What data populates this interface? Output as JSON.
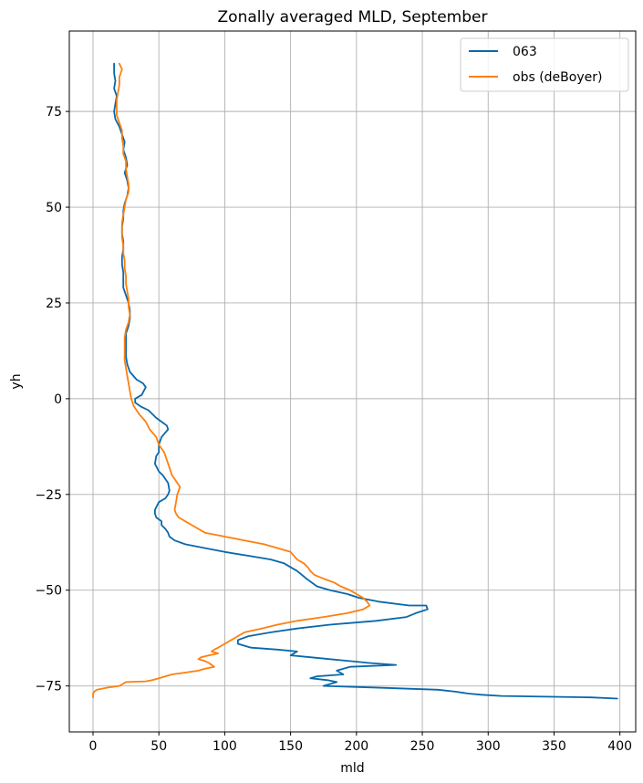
{
  "chart_data": {
    "type": "line",
    "title": "Zonally averaged MLD, September",
    "xlabel": "mld",
    "ylabel": "yh",
    "xlim": [
      -18,
      412
    ],
    "ylim": [
      -87,
      96
    ],
    "xticks": [
      0,
      50,
      100,
      150,
      200,
      250,
      300,
      350,
      400
    ],
    "yticks": [
      -75,
      -50,
      -25,
      0,
      25,
      50,
      75
    ],
    "grid": true,
    "legend_position": "top-right",
    "series": [
      {
        "name": "063",
        "color": "#0868ac",
        "points": [
          [
            16,
            87.5
          ],
          [
            16,
            85
          ],
          [
            17,
            83
          ],
          [
            16,
            81
          ],
          [
            18,
            79
          ],
          [
            17,
            77
          ],
          [
            16,
            75
          ],
          [
            17,
            73
          ],
          [
            20,
            71
          ],
          [
            22,
            69
          ],
          [
            24,
            67
          ],
          [
            23,
            65
          ],
          [
            25,
            63
          ],
          [
            26,
            61
          ],
          [
            24,
            59
          ],
          [
            26,
            57
          ],
          [
            27,
            55
          ],
          [
            26,
            53
          ],
          [
            24,
            51
          ],
          [
            23,
            49
          ],
          [
            23,
            47
          ],
          [
            22,
            45
          ],
          [
            22,
            43
          ],
          [
            23,
            41
          ],
          [
            23,
            39
          ],
          [
            22,
            37
          ],
          [
            22,
            35
          ],
          [
            23,
            33
          ],
          [
            23,
            31
          ],
          [
            23,
            29
          ],
          [
            25,
            27
          ],
          [
            27,
            25
          ],
          [
            28,
            23
          ],
          [
            28,
            21
          ],
          [
            27,
            19
          ],
          [
            25,
            17
          ],
          [
            25,
            15
          ],
          [
            25,
            13
          ],
          [
            25,
            11
          ],
          [
            26,
            9
          ],
          [
            28,
            7
          ],
          [
            33,
            5
          ],
          [
            38,
            4
          ],
          [
            40,
            3
          ],
          [
            37,
            1
          ],
          [
            32,
            0
          ],
          [
            32,
            -1
          ],
          [
            36,
            -2
          ],
          [
            42,
            -3
          ],
          [
            48,
            -5
          ],
          [
            52,
            -6
          ],
          [
            56,
            -7
          ],
          [
            57,
            -8
          ],
          [
            52,
            -10
          ],
          [
            50,
            -12
          ],
          [
            50,
            -14
          ],
          [
            48,
            -15
          ],
          [
            47,
            -17
          ],
          [
            50,
            -19
          ],
          [
            53,
            -20
          ],
          [
            57,
            -22
          ],
          [
            58,
            -24
          ],
          [
            57,
            -25
          ],
          [
            55,
            -26
          ],
          [
            50,
            -27
          ],
          [
            47,
            -29
          ],
          [
            47,
            -30
          ],
          [
            48,
            -31
          ],
          [
            52,
            -32
          ],
          [
            52,
            -33
          ],
          [
            55,
            -34
          ],
          [
            57,
            -35
          ],
          [
            58,
            -36
          ],
          [
            62,
            -37
          ],
          [
            70,
            -38
          ],
          [
            85,
            -39
          ],
          [
            100,
            -40
          ],
          [
            118,
            -41
          ],
          [
            135,
            -42
          ],
          [
            145,
            -43
          ],
          [
            155,
            -45
          ],
          [
            162,
            -47
          ],
          [
            170,
            -49
          ],
          [
            180,
            -50
          ],
          [
            193,
            -51
          ],
          [
            202,
            -52
          ],
          [
            217,
            -53
          ],
          [
            240,
            -54
          ],
          [
            253,
            -54
          ],
          [
            254,
            -55
          ],
          [
            245,
            -56
          ],
          [
            238,
            -57
          ],
          [
            215,
            -58
          ],
          [
            180,
            -59
          ],
          [
            155,
            -60
          ],
          [
            135,
            -61
          ],
          [
            118,
            -62
          ],
          [
            110,
            -63
          ],
          [
            110,
            -64
          ],
          [
            120,
            -65
          ],
          [
            140,
            -65.5
          ],
          [
            155,
            -66
          ],
          [
            150,
            -67
          ],
          [
            165,
            -67.5
          ],
          [
            180,
            -68
          ],
          [
            195,
            -68.5
          ],
          [
            210,
            -69
          ],
          [
            230,
            -69.5
          ],
          [
            195,
            -70
          ],
          [
            185,
            -71
          ],
          [
            190,
            -72
          ],
          [
            170,
            -72.5
          ],
          [
            165,
            -73
          ],
          [
            178,
            -73.5
          ],
          [
            185,
            -74
          ],
          [
            175,
            -75
          ],
          [
            220,
            -75.5
          ],
          [
            262,
            -76
          ],
          [
            275,
            -76.5
          ],
          [
            285,
            -77
          ],
          [
            295,
            -77.3
          ],
          [
            310,
            -77.6
          ],
          [
            378,
            -78
          ],
          [
            398,
            -78.3
          ]
        ]
      },
      {
        "name": "obs (deBoyer)",
        "color": "#ff7f0e",
        "points": [
          [
            20,
            87.5
          ],
          [
            22,
            86
          ],
          [
            20,
            84
          ],
          [
            20,
            82
          ],
          [
            19,
            80
          ],
          [
            18,
            78
          ],
          [
            18,
            76
          ],
          [
            18,
            74
          ],
          [
            20,
            72
          ],
          [
            22,
            70
          ],
          [
            22,
            68
          ],
          [
            23,
            66
          ],
          [
            23,
            64
          ],
          [
            25,
            62
          ],
          [
            25,
            60
          ],
          [
            26,
            58
          ],
          [
            27,
            56
          ],
          [
            27,
            54
          ],
          [
            25,
            52
          ],
          [
            24,
            50
          ],
          [
            23,
            48
          ],
          [
            22,
            46
          ],
          [
            22,
            44
          ],
          [
            22,
            42
          ],
          [
            23,
            40
          ],
          [
            23,
            38
          ],
          [
            24,
            36
          ],
          [
            24,
            34
          ],
          [
            25,
            32
          ],
          [
            25,
            30
          ],
          [
            26,
            28
          ],
          [
            27,
            26
          ],
          [
            27,
            24
          ],
          [
            28,
            22
          ],
          [
            27,
            20
          ],
          [
            25,
            18
          ],
          [
            24,
            16
          ],
          [
            24,
            14
          ],
          [
            24,
            12
          ],
          [
            24,
            10
          ],
          [
            25,
            8
          ],
          [
            26,
            6
          ],
          [
            27,
            4
          ],
          [
            28,
            2
          ],
          [
            29,
            0
          ],
          [
            31,
            -2
          ],
          [
            35,
            -4
          ],
          [
            40,
            -6
          ],
          [
            43,
            -8
          ],
          [
            48,
            -10
          ],
          [
            50,
            -12
          ],
          [
            54,
            -14
          ],
          [
            56,
            -16
          ],
          [
            58,
            -18
          ],
          [
            60,
            -20
          ],
          [
            64,
            -22
          ],
          [
            66,
            -23
          ],
          [
            64,
            -25
          ],
          [
            63,
            -27
          ],
          [
            62,
            -29
          ],
          [
            63,
            -30
          ],
          [
            65,
            -31
          ],
          [
            70,
            -32
          ],
          [
            75,
            -33
          ],
          [
            85,
            -35
          ],
          [
            100,
            -36
          ],
          [
            115,
            -37
          ],
          [
            130,
            -38
          ],
          [
            140,
            -39
          ],
          [
            150,
            -40
          ],
          [
            155,
            -42
          ],
          [
            160,
            -43
          ],
          [
            163,
            -44
          ],
          [
            165,
            -45
          ],
          [
            168,
            -46
          ],
          [
            175,
            -47
          ],
          [
            183,
            -48
          ],
          [
            188,
            -49
          ],
          [
            195,
            -50
          ],
          [
            200,
            -51
          ],
          [
            205,
            -52
          ],
          [
            208,
            -53
          ],
          [
            210,
            -54
          ],
          [
            205,
            -55
          ],
          [
            193,
            -56
          ],
          [
            175,
            -57
          ],
          [
            155,
            -58
          ],
          [
            140,
            -59
          ],
          [
            128,
            -60
          ],
          [
            115,
            -61
          ],
          [
            105,
            -63
          ],
          [
            100,
            -64
          ],
          [
            95,
            -65
          ],
          [
            92,
            -65.5
          ],
          [
            90,
            -66
          ],
          [
            95,
            -66.5
          ],
          [
            88,
            -67
          ],
          [
            82,
            -67.5
          ],
          [
            80,
            -68
          ],
          [
            85,
            -68.5
          ],
          [
            88,
            -69
          ],
          [
            92,
            -70
          ],
          [
            85,
            -70.5
          ],
          [
            80,
            -71
          ],
          [
            70,
            -71.5
          ],
          [
            60,
            -72
          ],
          [
            55,
            -72.5
          ],
          [
            50,
            -73
          ],
          [
            45,
            -73.5
          ],
          [
            40,
            -73.8
          ],
          [
            25,
            -74
          ],
          [
            20,
            -75
          ],
          [
            10,
            -75.5
          ],
          [
            3,
            -76
          ],
          [
            1,
            -76.5
          ],
          [
            0,
            -77
          ],
          [
            0,
            -78
          ]
        ]
      }
    ]
  }
}
